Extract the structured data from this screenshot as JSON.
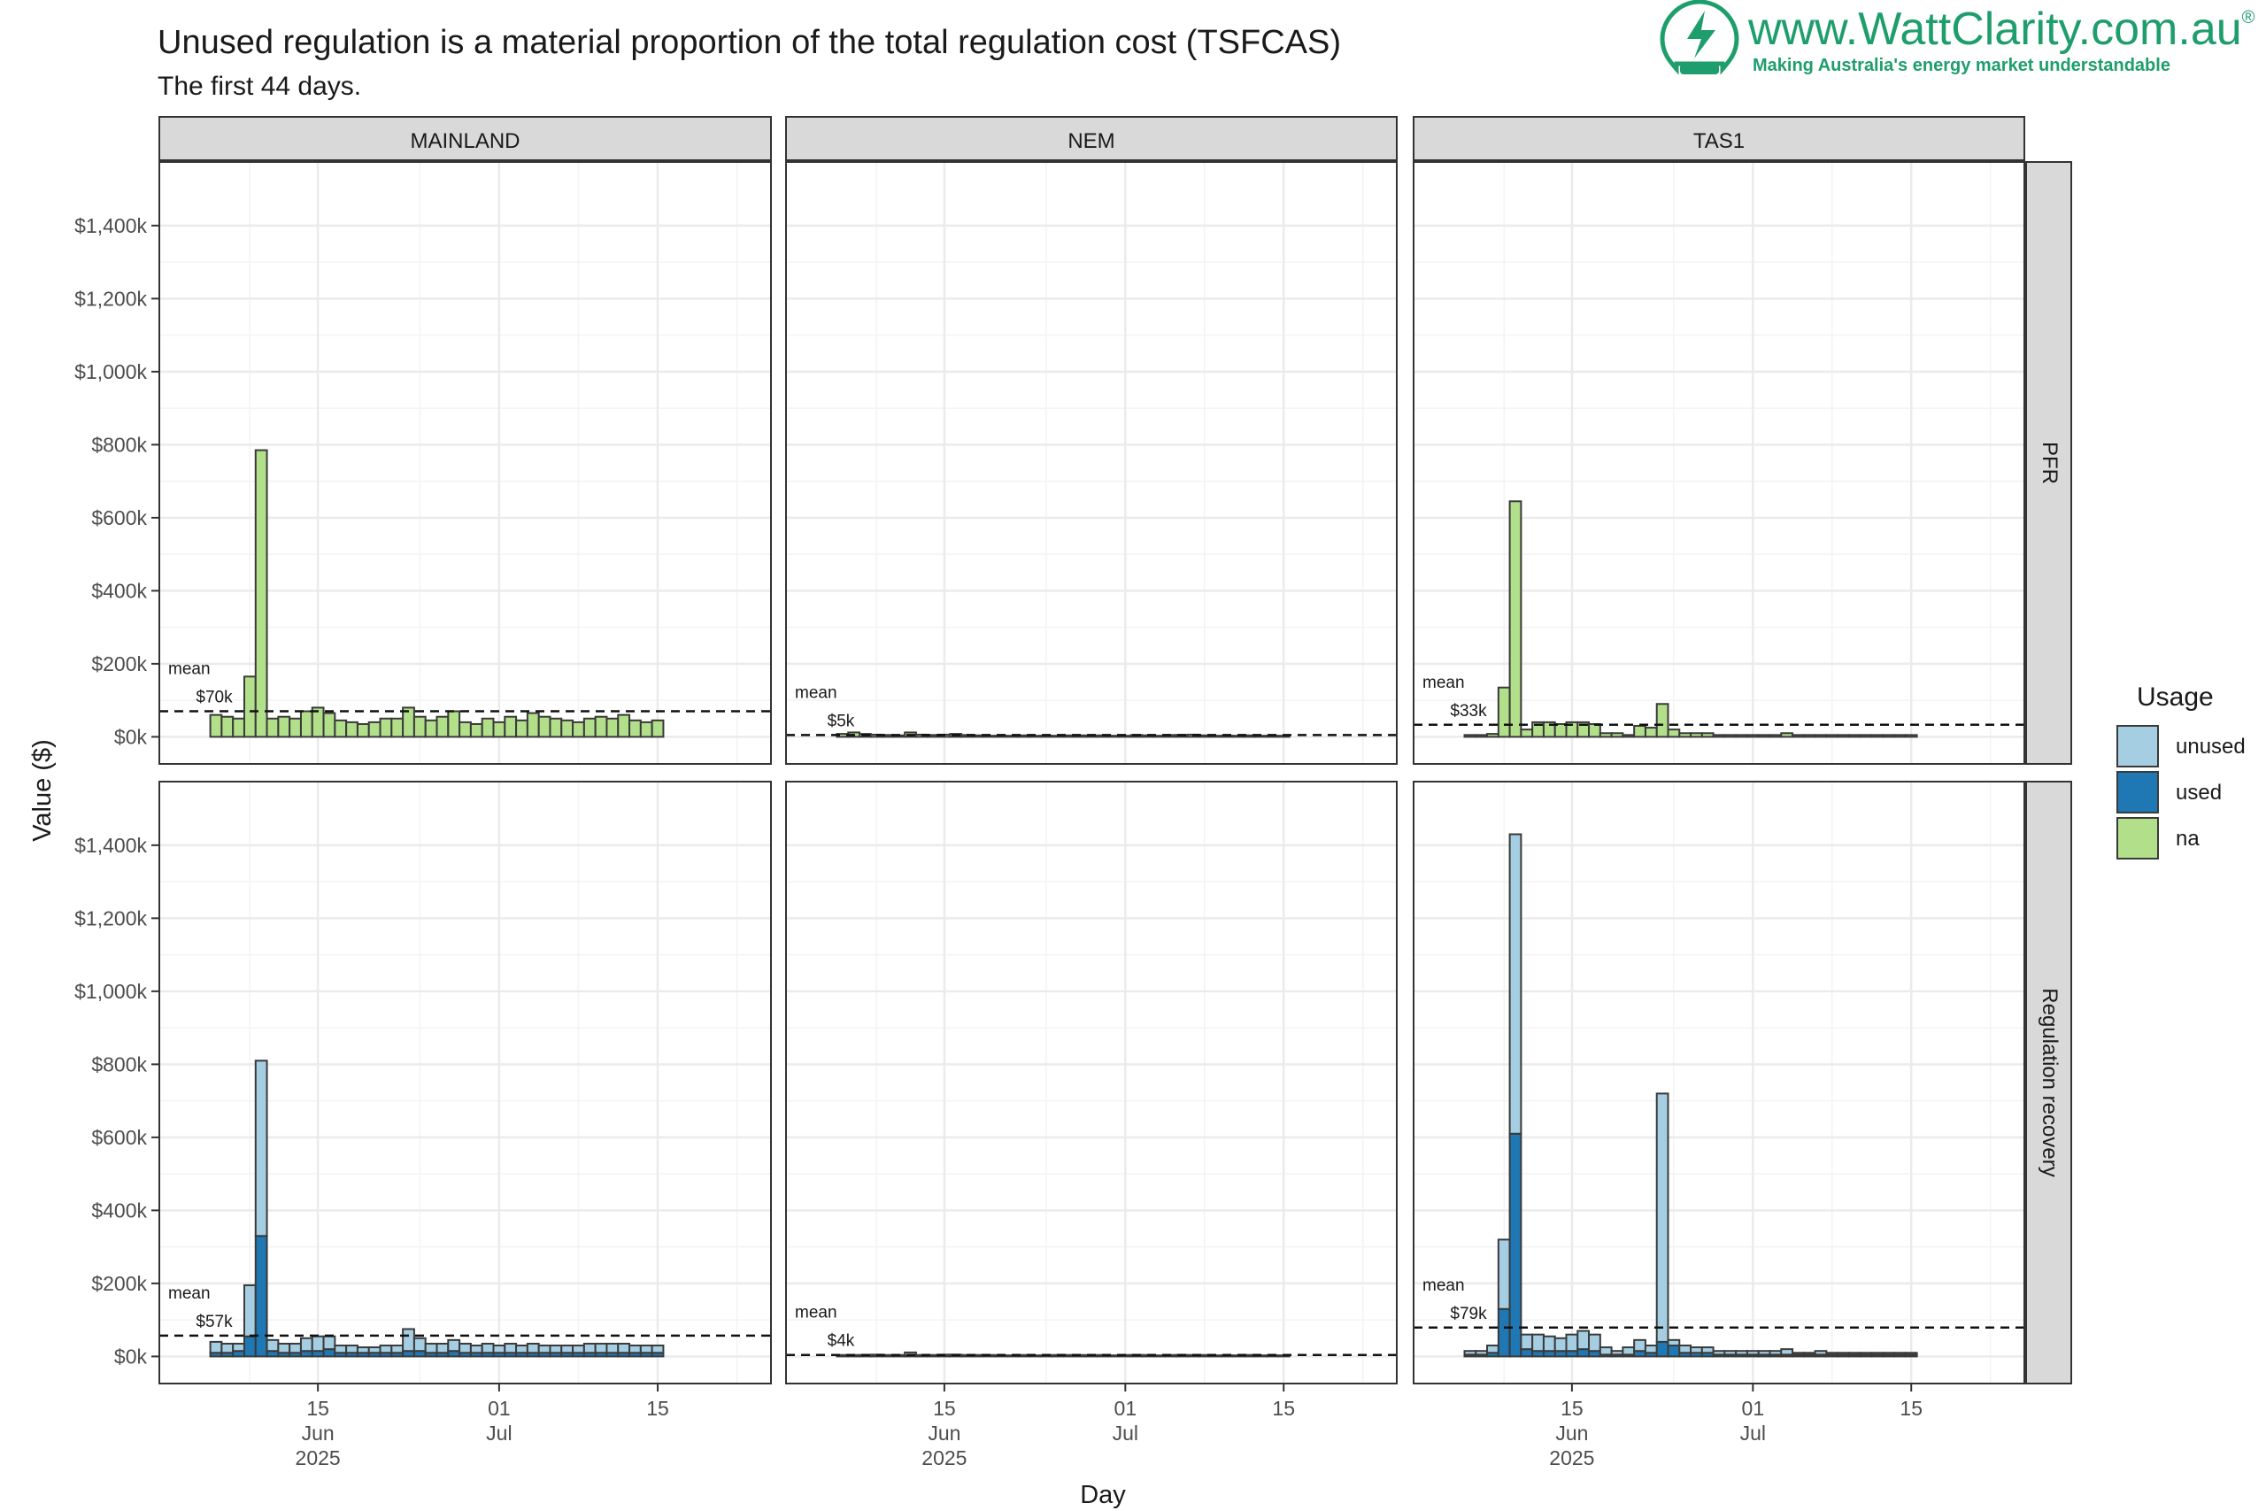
{
  "page": {
    "title": "Unused regulation is a material proportion of the total regulation cost (TSFCAS)",
    "subtitle": "The first 44 days."
  },
  "logo": {
    "name": "www.WattClarity.com.au",
    "registered_mark": "®",
    "tagline": "Making Australia's energy market understandable",
    "icon": "lightbulb-bolt-icon"
  },
  "colors": {
    "unused": "#a6cee3",
    "used": "#1f78b4",
    "na": "#b2df8a",
    "strip_bg": "#d9d9d9",
    "grid": "#ebebeb",
    "logo": "#1f9e6d"
  },
  "chart_data": {
    "type": "bar",
    "stacked": true,
    "facet_cols": [
      "MAINLAND",
      "NEM",
      "TAS1"
    ],
    "facet_rows": [
      "PFR",
      "Regulation recovery"
    ],
    "xlabel": "Day",
    "ylabel": "Value ($)",
    "ylim": [
      0,
      1500000
    ],
    "y_ticks": [
      0,
      200000,
      400000,
      600000,
      800000,
      1000000,
      1200000,
      1400000
    ],
    "y_tick_labels": [
      "$0k",
      "$200k",
      "$400k",
      "$600k",
      "$800k",
      "$1,000k",
      "$1,200k",
      "$1,400k"
    ],
    "x_range": [
      "2025-06-01",
      "2025-07-25"
    ],
    "x_ticks": [
      {
        "date": "2025-06-15",
        "label": [
          "15",
          "Jun",
          "2025"
        ]
      },
      {
        "date": "2025-07-01",
        "label": [
          "01",
          "Jul",
          ""
        ]
      },
      {
        "date": "2025-07-15",
        "label": [
          "15",
          "",
          ""
        ]
      }
    ],
    "x_start": "2025-06-06",
    "legend": {
      "title": "Usage",
      "position": "right",
      "items": [
        "unused",
        "used",
        "na"
      ]
    },
    "mean_label": "mean",
    "panels": [
      {
        "col": "MAINLAND",
        "row": "PFR",
        "mean": 70000,
        "mean_label": "$70k",
        "na": [
          60,
          55,
          50,
          165,
          785,
          50,
          55,
          50,
          70,
          80,
          65,
          45,
          40,
          35,
          40,
          50,
          50,
          80,
          55,
          45,
          55,
          70,
          40,
          35,
          50,
          40,
          55,
          45,
          65,
          55,
          50,
          45,
          40,
          50,
          55,
          50,
          60,
          45,
          40,
          45
        ]
      },
      {
        "col": "NEM",
        "row": "PFR",
        "mean": 5000,
        "mean_label": "$5k",
        "na": [
          8,
          12,
          8,
          6,
          5,
          4,
          12,
          6,
          5,
          6,
          8,
          5,
          4,
          3,
          3,
          3,
          4,
          3,
          3,
          3,
          4,
          4,
          3,
          4,
          3,
          3,
          5,
          4,
          3,
          5,
          5,
          6,
          4,
          3,
          3,
          3,
          4,
          3,
          3,
          3
        ]
      },
      {
        "col": "TAS1",
        "row": "PFR",
        "mean": 33000,
        "mean_label": "$33k",
        "na": [
          5,
          5,
          8,
          135,
          645,
          20,
          40,
          40,
          35,
          40,
          40,
          35,
          10,
          10,
          5,
          30,
          25,
          90,
          20,
          10,
          10,
          10,
          5,
          5,
          5,
          5,
          5,
          5,
          10,
          5,
          5,
          5,
          5,
          5,
          5,
          5,
          5,
          5,
          5,
          5
        ]
      },
      {
        "col": "MAINLAND",
        "row": "Regulation recovery",
        "mean": 57000,
        "mean_label": "$57k",
        "used": [
          10,
          10,
          15,
          55,
          330,
          15,
          10,
          10,
          15,
          15,
          20,
          10,
          10,
          10,
          10,
          10,
          10,
          15,
          15,
          10,
          10,
          15,
          10,
          10,
          10,
          10,
          10,
          10,
          10,
          10,
          10,
          10,
          10,
          10,
          10,
          10,
          10,
          10,
          10,
          10
        ],
        "unused": [
          30,
          25,
          20,
          140,
          480,
          30,
          25,
          25,
          35,
          40,
          35,
          20,
          20,
          15,
          15,
          20,
          20,
          60,
          35,
          25,
          25,
          30,
          25,
          20,
          25,
          20,
          25,
          20,
          25,
          20,
          20,
          20,
          20,
          25,
          25,
          25,
          25,
          20,
          20,
          20
        ]
      },
      {
        "col": "NEM",
        "row": "Regulation recovery",
        "mean": 4000,
        "mean_label": "$4k",
        "used": [
          1,
          1,
          1,
          1,
          1,
          1,
          2,
          1,
          1,
          1,
          1,
          1,
          1,
          1,
          1,
          1,
          1,
          1,
          1,
          1,
          1,
          1,
          1,
          1,
          1,
          1,
          1,
          1,
          1,
          1,
          1,
          1,
          1,
          1,
          1,
          1,
          1,
          1,
          1,
          1
        ],
        "unused": [
          3,
          3,
          3,
          4,
          3,
          3,
          9,
          3,
          3,
          4,
          4,
          3,
          3,
          3,
          2,
          2,
          3,
          2,
          2,
          3,
          3,
          3,
          2,
          3,
          2,
          3,
          3,
          3,
          2,
          3,
          3,
          3,
          3,
          2,
          2,
          2,
          3,
          2,
          2,
          2
        ]
      },
      {
        "col": "TAS1",
        "row": "Regulation recovery",
        "mean": 79000,
        "mean_label": "$79k",
        "used": [
          5,
          5,
          10,
          130,
          610,
          20,
          15,
          15,
          15,
          15,
          20,
          15,
          5,
          5,
          5,
          15,
          10,
          40,
          30,
          10,
          10,
          10,
          5,
          5,
          5,
          5,
          5,
          5,
          5,
          5,
          5,
          5,
          5,
          5,
          5,
          5,
          5,
          5,
          5,
          5
        ],
        "unused": [
          10,
          10,
          20,
          190,
          820,
          40,
          45,
          40,
          35,
          45,
          50,
          45,
          20,
          10,
          20,
          30,
          20,
          680,
          15,
          20,
          15,
          15,
          10,
          10,
          10,
          10,
          10,
          10,
          15,
          5,
          5,
          10,
          5,
          5,
          5,
          5,
          5,
          5,
          5,
          5
        ]
      }
    ]
  }
}
